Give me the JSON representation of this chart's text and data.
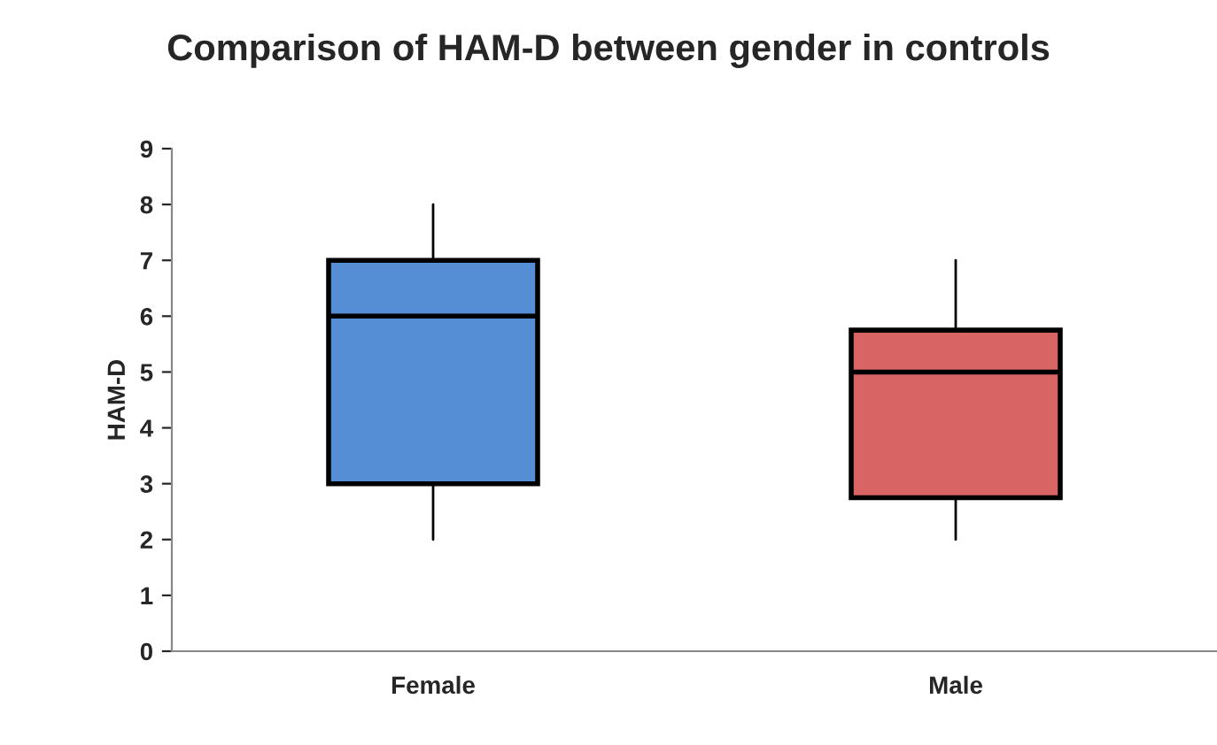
{
  "chart_data": {
    "type": "box",
    "title": "Comparison of HAM-D between gender in controls",
    "ylabel": "HAM-D",
    "categories": [
      "Female",
      "Male"
    ],
    "boxes": [
      {
        "low": 2,
        "q1": 3,
        "median": 6,
        "q3": 7,
        "high": 8
      },
      {
        "low": 2,
        "q1": 2.75,
        "median": 5,
        "q3": 5.75,
        "high": 7
      }
    ],
    "colors": [
      "#558ed5",
      "#d96464"
    ],
    "ylim": [
      0,
      9
    ],
    "yticks": [
      0,
      1,
      2,
      3,
      4,
      5,
      6,
      7,
      8,
      9
    ],
    "grid": false,
    "legend": false
  }
}
